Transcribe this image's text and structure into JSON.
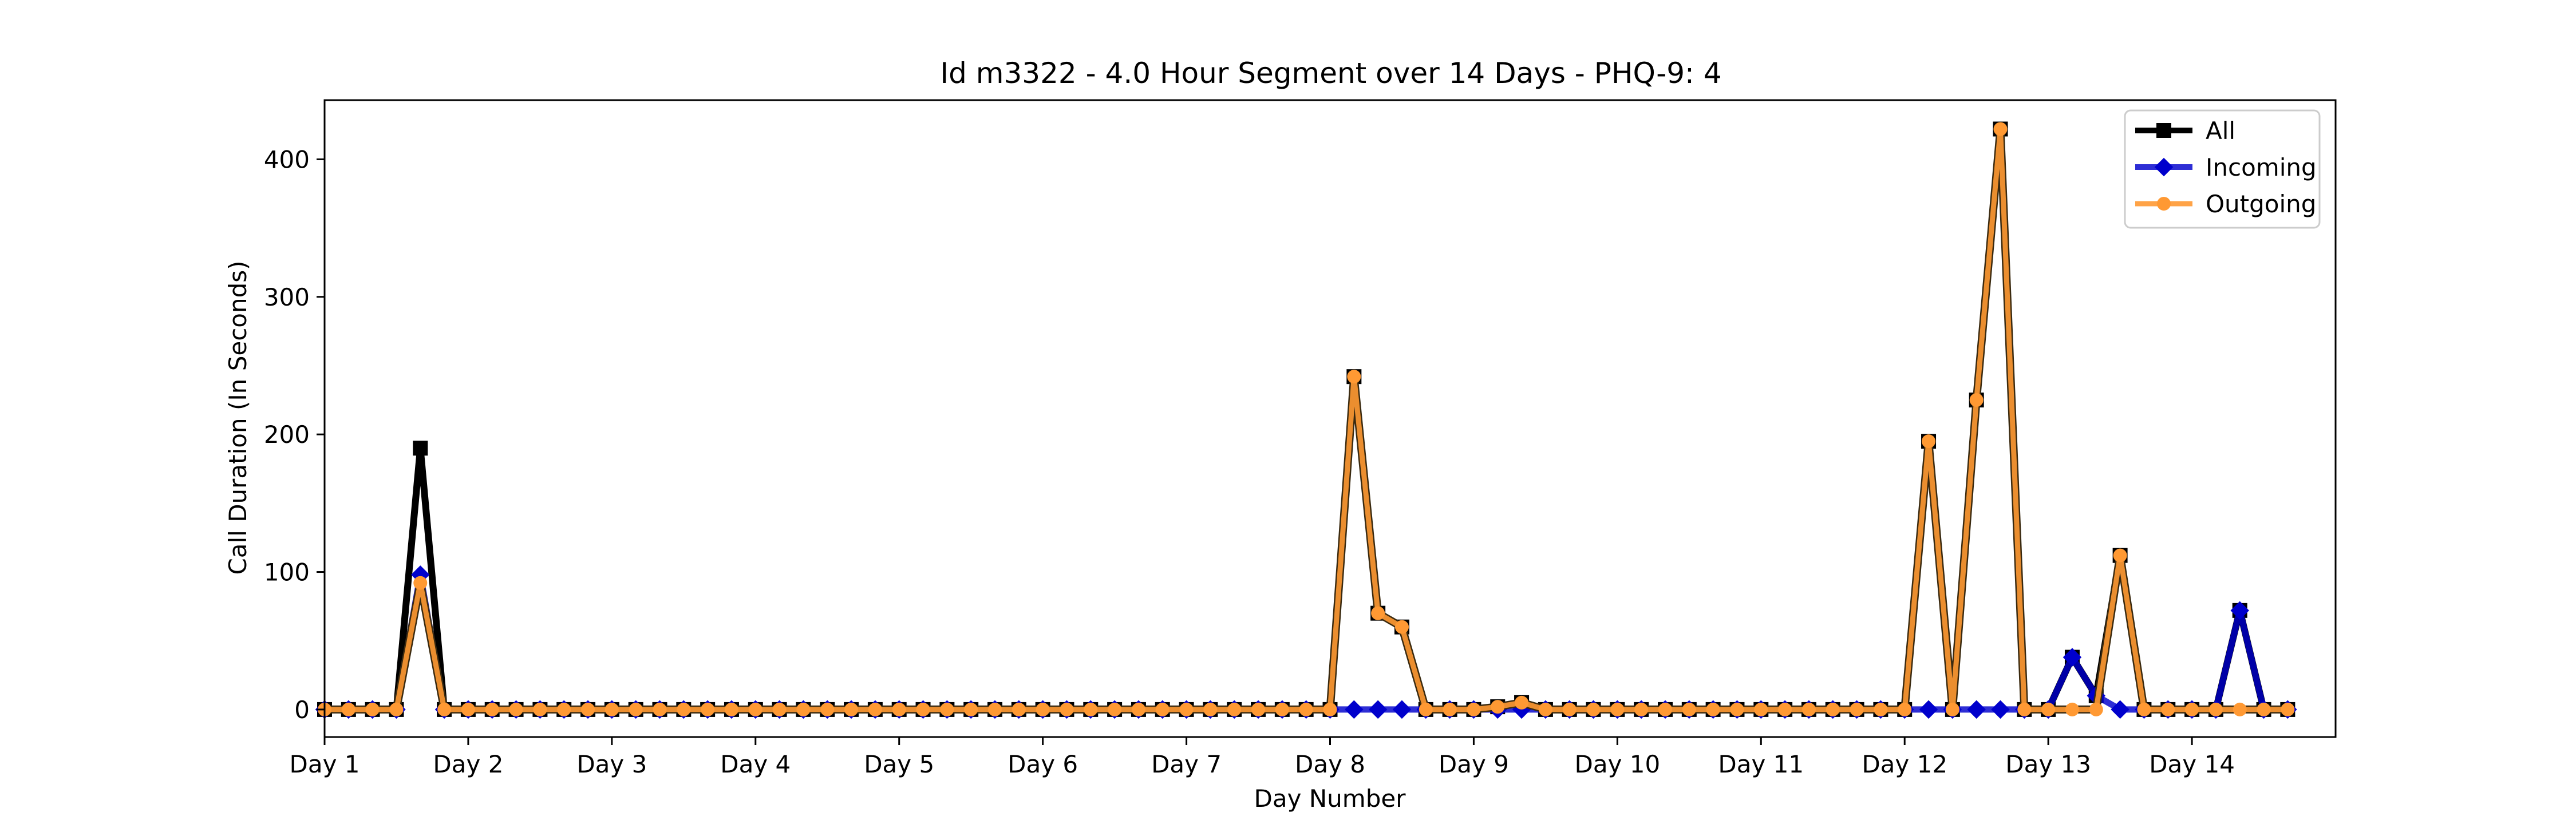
{
  "chart_data": {
    "type": "line",
    "title": "Id m3322 - 4.0 Hour Segment over 14 Days - PHQ-9: 4",
    "xlabel": "Day Number",
    "ylabel": "Call Duration (In Seconds)",
    "x_tick_labels": [
      "Day 1",
      "Day 2",
      "Day 3",
      "Day 4",
      "Day 5",
      "Day 6",
      "Day 7",
      "Day 8",
      "Day 9",
      "Day 10",
      "Day 11",
      "Day 12",
      "Day 13",
      "Day 14"
    ],
    "y_ticks": [
      0,
      100,
      200,
      300,
      400
    ],
    "xlim": [
      0,
      84
    ],
    "ylim": [
      -20,
      443
    ],
    "legend_position": "top-right",
    "series": [
      {
        "name": "All",
        "color": "#000000",
        "marker": "square",
        "values": [
          0,
          0,
          0,
          0,
          190,
          0,
          0,
          0,
          0,
          0,
          0,
          0,
          0,
          0,
          0,
          0,
          0,
          0,
          0,
          0,
          0,
          0,
          0,
          0,
          0,
          0,
          0,
          0,
          0,
          0,
          0,
          0,
          0,
          0,
          0,
          0,
          0,
          0,
          0,
          0,
          0,
          0,
          0,
          242,
          70,
          60,
          0,
          0,
          0,
          2,
          5,
          0,
          0,
          0,
          0,
          0,
          0,
          0,
          0,
          0,
          0,
          0,
          0,
          0,
          0,
          0,
          0,
          195,
          0,
          225,
          422,
          0,
          0,
          38,
          10,
          112,
          0,
          0,
          0,
          0,
          72,
          0,
          0
        ]
      },
      {
        "name": "Incoming",
        "color": "#0000cc",
        "marker": "diamond",
        "values": [
          0,
          0,
          0,
          0,
          98,
          0,
          0,
          0,
          0,
          0,
          0,
          0,
          0,
          0,
          0,
          0,
          0,
          0,
          0,
          0,
          0,
          0,
          0,
          0,
          0,
          0,
          0,
          0,
          0,
          0,
          0,
          0,
          0,
          0,
          0,
          0,
          0,
          0,
          0,
          0,
          0,
          0,
          0,
          0,
          0,
          0,
          0,
          0,
          0,
          0,
          0,
          0,
          0,
          0,
          0,
          0,
          0,
          0,
          0,
          0,
          0,
          0,
          0,
          0,
          0,
          0,
          0,
          0,
          0,
          0,
          0,
          0,
          0,
          38,
          10,
          0,
          0,
          0,
          0,
          0,
          72,
          0,
          0
        ]
      },
      {
        "name": "Outgoing",
        "color": "#ff9933",
        "marker": "circle",
        "values": [
          0,
          0,
          0,
          0,
          92,
          0,
          0,
          0,
          0,
          0,
          0,
          0,
          0,
          0,
          0,
          0,
          0,
          0,
          0,
          0,
          0,
          0,
          0,
          0,
          0,
          0,
          0,
          0,
          0,
          0,
          0,
          0,
          0,
          0,
          0,
          0,
          0,
          0,
          0,
          0,
          0,
          0,
          0,
          242,
          70,
          60,
          0,
          0,
          0,
          2,
          5,
          0,
          0,
          0,
          0,
          0,
          0,
          0,
          0,
          0,
          0,
          0,
          0,
          0,
          0,
          0,
          0,
          195,
          0,
          225,
          422,
          0,
          0,
          0,
          0,
          112,
          0,
          0,
          0,
          0,
          0,
          0,
          0
        ]
      }
    ]
  }
}
